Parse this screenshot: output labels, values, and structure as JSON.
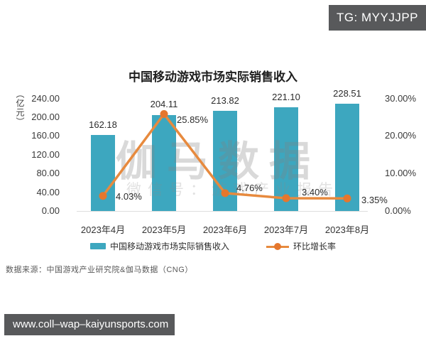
{
  "overlay": {
    "badge": "TG: MYYJJPP",
    "footer_url": "www.coll–wap–kaiyunsports.com"
  },
  "chart_data": {
    "type": "bar",
    "subtype": "bar-line-combo",
    "title": "中国移动游戏市场实际销售收入",
    "categories": [
      "2023年4月",
      "2023年5月",
      "2023年6月",
      "2023年7月",
      "2023年8月"
    ],
    "series": [
      {
        "name": "中国移动游戏市场实际销售收入",
        "type": "bar",
        "axis": "left",
        "values": [
          162.18,
          204.11,
          213.82,
          221.1,
          228.51
        ],
        "labels": [
          "162.18",
          "204.11",
          "213.82",
          "221.10",
          "228.51"
        ],
        "color": "#3da7bf"
      },
      {
        "name": "环比增长率",
        "type": "line",
        "axis": "right",
        "values": [
          4.03,
          25.85,
          4.76,
          3.4,
          3.35
        ],
        "labels": [
          "4.03%",
          "25.85%",
          "4.76%",
          "3.40%",
          "3.35%"
        ],
        "color": "#e78a3e",
        "marker_color": "#e5772e"
      }
    ],
    "left_axis": {
      "unit": "（亿元）",
      "ticks": [
        "240.00",
        "200.00",
        "160.00",
        "120.00",
        "80.00",
        "40.00",
        "0.00"
      ],
      "min": 0,
      "max": 240
    },
    "right_axis": {
      "ticks": [
        "30.00%",
        "20.00%",
        "10.00%",
        "0.00%"
      ],
      "min": 0,
      "max": 30
    },
    "grid": false,
    "legend_position": "bottom",
    "watermark": {
      "line1": "伽马数据",
      "line2": "微信号：游戏产业报告"
    },
    "source": "数据来源：中国游戏产业研究院&伽马数据（CNG）"
  }
}
